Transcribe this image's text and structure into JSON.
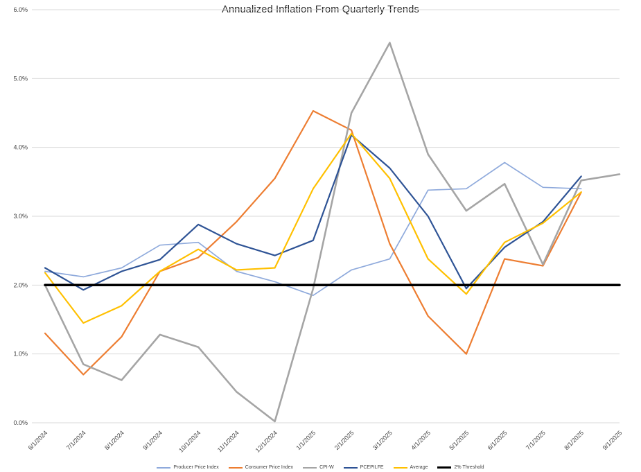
{
  "chart_data": {
    "type": "line",
    "title": "Annualized Inflation From Quarterly Trends",
    "categories": [
      "6/1/2024",
      "7/1/2024",
      "8/1/2024",
      "9/1/2024",
      "10/1/2024",
      "11/1/2024",
      "12/1/2024",
      "1/1/2025",
      "2/1/2025",
      "3/1/2025",
      "4/1/2025",
      "5/1/2025",
      "6/1/2025",
      "7/1/2025",
      "8/1/2025",
      "9/1/2025"
    ],
    "y_axis": {
      "min": 0,
      "max": 6,
      "step": 1,
      "tick_labels": [
        "0.0%",
        "1.0%",
        "2.0%",
        "3.0%",
        "4.0%",
        "5.0%",
        "6.0%"
      ]
    },
    "grid": true,
    "legend_position": "bottom",
    "series": [
      {
        "name": "Producer Price Index",
        "color": "#8FAADC",
        "width": 1.7,
        "values": [
          2.2,
          2.12,
          2.25,
          2.58,
          2.62,
          2.2,
          2.05,
          1.85,
          2.22,
          2.38,
          3.38,
          3.4,
          3.78,
          3.42,
          3.4,
          null
        ]
      },
      {
        "name": "Consumer Price Index",
        "color": "#ED7D31",
        "width": 2.2,
        "values": [
          1.3,
          0.7,
          1.25,
          2.2,
          2.4,
          2.92,
          3.55,
          4.53,
          4.25,
          2.6,
          1.55,
          1.0,
          2.38,
          2.28,
          3.35,
          null
        ]
      },
      {
        "name": "CPI-W",
        "color": "#A5A5A5",
        "width": 2.6,
        "values": [
          2.0,
          0.85,
          0.62,
          1.28,
          1.1,
          0.45,
          0.02,
          1.95,
          4.5,
          5.52,
          3.9,
          3.08,
          3.47,
          2.3,
          3.52,
          3.61
        ]
      },
      {
        "name": "PCEPILFE",
        "color": "#2E5395",
        "width": 2.2,
        "values": [
          2.25,
          1.93,
          2.2,
          2.37,
          2.88,
          2.6,
          2.43,
          2.65,
          4.18,
          3.7,
          3.0,
          1.95,
          2.55,
          2.92,
          3.58,
          null
        ]
      },
      {
        "name": "Average",
        "color": "#FFC000",
        "width": 2.2,
        "values": [
          2.18,
          1.45,
          1.7,
          2.2,
          2.52,
          2.22,
          2.25,
          3.4,
          4.2,
          3.55,
          2.38,
          1.87,
          2.62,
          2.9,
          3.35,
          null
        ]
      },
      {
        "name": "2% Threshold",
        "color": "#000000",
        "width": 3.5,
        "values": [
          2,
          2,
          2,
          2,
          2,
          2,
          2,
          2,
          2,
          2,
          2,
          2,
          2,
          2,
          2,
          2
        ]
      }
    ]
  }
}
